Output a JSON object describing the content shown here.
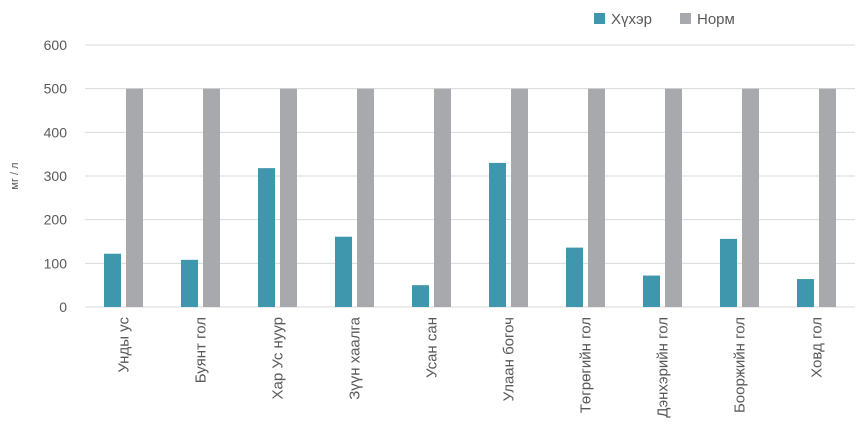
{
  "chart_data": {
    "type": "bar",
    "title": "",
    "xlabel": "",
    "ylabel": "мг / л",
    "ylim": [
      0,
      600
    ],
    "yticks": [
      0,
      100,
      200,
      300,
      400,
      500,
      600
    ],
    "grid": true,
    "legend_position": "top-right",
    "categories": [
      "Унды ус",
      "Буянт гол",
      "Хар Ус нуур",
      "Зүүн хаалга",
      "Усан сан",
      "Улаан богоч",
      "Төгрөгийн гол",
      "Дэнхэрийн гол",
      "Бооржийн гол",
      "Ховд гол"
    ],
    "series": [
      {
        "name": "Хүхэр",
        "color": "#3e97ac",
        "values": [
          122,
          108,
          318,
          161,
          50,
          330,
          136,
          72,
          156,
          64
        ]
      },
      {
        "name": "Норм",
        "color": "#a8a9ad",
        "values": [
          500,
          500,
          500,
          500,
          500,
          500,
          500,
          500,
          500,
          500
        ]
      }
    ]
  }
}
